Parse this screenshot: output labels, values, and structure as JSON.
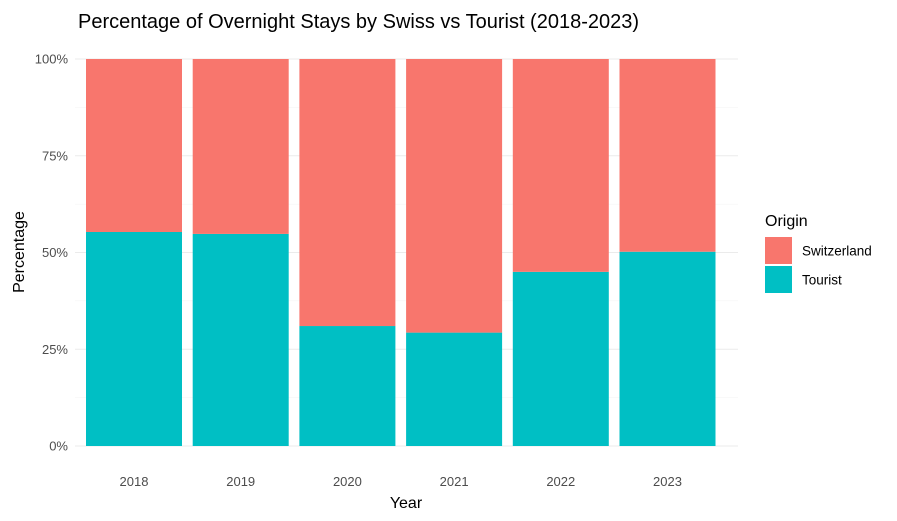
{
  "chart_data": {
    "type": "bar",
    "stacked": true,
    "title": "Percentage of Overnight Stays by Swiss vs Tourist (2018-2023)",
    "xlabel": "Year",
    "ylabel": "Percentage",
    "categories": [
      "2018",
      "2019",
      "2020",
      "2021",
      "2022",
      "2023"
    ],
    "series": [
      {
        "name": "Tourist",
        "values": [
          55.3,
          54.8,
          31.0,
          29.3,
          45.0,
          50.2
        ]
      },
      {
        "name": "Switzerland",
        "values": [
          44.7,
          45.2,
          69.0,
          70.7,
          55.0,
          49.8
        ]
      }
    ],
    "ylim": [
      0,
      100
    ],
    "yticks": [
      0,
      25,
      50,
      75,
      100
    ],
    "ytick_labels": [
      "0%",
      "25%",
      "50%",
      "75%",
      "100%"
    ],
    "grid": true,
    "legend": {
      "title": "Origin",
      "position": "right",
      "entries": [
        "Switzerland",
        "Tourist"
      ]
    },
    "colors": {
      "Switzerland": "#F8766D",
      "Tourist": "#00BFC4"
    }
  }
}
